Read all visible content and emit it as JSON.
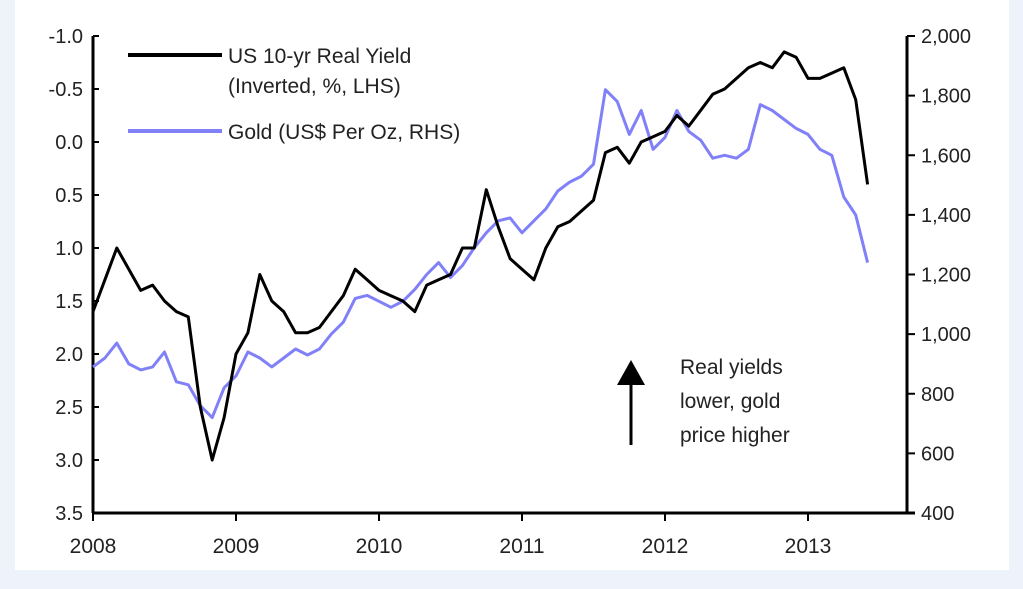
{
  "chart_data": {
    "type": "line",
    "x_label_ticks": [
      "2008",
      "2009",
      "2010",
      "2011",
      "2012",
      "2013"
    ],
    "xlim": [
      2008,
      2013.7
    ],
    "y_left": {
      "ticks": [
        "-1.0",
        "-0.5",
        "0.0",
        "0.5",
        "1.0",
        "1.5",
        "2.0",
        "2.5",
        "3.0",
        "3.5"
      ],
      "range": [
        -1.0,
        3.5
      ],
      "inverted": true
    },
    "y_right": {
      "ticks": [
        "2,000",
        "1,800",
        "1,600",
        "1,400",
        "1,200",
        "1,000",
        "800",
        "600",
        "400"
      ],
      "range": [
        400,
        2000
      ]
    },
    "grid": false,
    "legend_placement": "top-left",
    "series": [
      {
        "name": "US 10-yr Real Yield",
        "name_line2": "(Inverted, %, LHS)",
        "axis": "left",
        "color": "#000000",
        "x_start": "2008-01",
        "frequency": "monthly",
        "values": [
          1.6,
          1.3,
          1.0,
          1.2,
          1.4,
          1.35,
          1.5,
          1.6,
          1.65,
          2.5,
          3.0,
          2.6,
          2.0,
          1.8,
          1.25,
          1.5,
          1.6,
          1.8,
          1.8,
          1.75,
          1.6,
          1.45,
          1.2,
          1.3,
          1.4,
          1.45,
          1.5,
          1.6,
          1.35,
          1.3,
          1.25,
          1.0,
          1.0,
          0.45,
          0.8,
          1.1,
          1.2,
          1.3,
          1.0,
          0.8,
          0.75,
          0.65,
          0.55,
          0.1,
          0.05,
          0.2,
          0.0,
          -0.05,
          -0.1,
          -0.25,
          -0.15,
          -0.3,
          -0.45,
          -0.5,
          -0.6,
          -0.7,
          -0.75,
          -0.7,
          -0.85,
          -0.8,
          -0.6,
          -0.6,
          -0.65,
          -0.7,
          -0.4,
          0.4
        ]
      },
      {
        "name": "Gold (US$ Per Oz, RHS)",
        "axis": "right",
        "color": "#8080f8",
        "x_start": "2008-01",
        "frequency": "monthly",
        "values": [
          890,
          920,
          970,
          900,
          880,
          890,
          940,
          840,
          830,
          760,
          720,
          820,
          860,
          940,
          920,
          890,
          920,
          950,
          930,
          950,
          1000,
          1040,
          1120,
          1130,
          1110,
          1090,
          1110,
          1150,
          1200,
          1240,
          1190,
          1230,
          1290,
          1340,
          1380,
          1390,
          1340,
          1380,
          1420,
          1480,
          1510,
          1530,
          1570,
          1820,
          1780,
          1670,
          1750,
          1620,
          1660,
          1750,
          1680,
          1650,
          1590,
          1600,
          1590,
          1620,
          1770,
          1750,
          1720,
          1690,
          1670,
          1620,
          1600,
          1460,
          1400,
          1240
        ]
      }
    ],
    "annotation": {
      "lines": [
        "Real yields",
        "lower, gold",
        "price higher"
      ],
      "arrow": "up"
    }
  }
}
